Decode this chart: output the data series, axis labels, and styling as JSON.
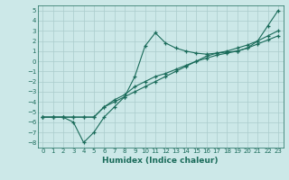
{
  "xlabel": "Humidex (Indice chaleur)",
  "bg_color": "#cce8e8",
  "grid_color": "#aacccc",
  "line_color": "#1a6b5a",
  "xlim": [
    -0.5,
    23.5
  ],
  "ylim": [
    -8.5,
    5.5
  ],
  "xticks": [
    0,
    1,
    2,
    3,
    4,
    5,
    6,
    7,
    8,
    9,
    10,
    11,
    12,
    13,
    14,
    15,
    16,
    17,
    18,
    19,
    20,
    21,
    22,
    23
  ],
  "yticks": [
    5,
    4,
    3,
    2,
    1,
    0,
    -1,
    -2,
    -3,
    -4,
    -5,
    -6,
    -7,
    -8
  ],
  "line1_x": [
    0,
    1,
    2,
    3,
    4,
    5,
    6,
    7,
    8,
    9,
    10,
    11,
    12,
    13,
    14,
    15,
    16,
    17,
    18,
    19,
    20,
    21,
    22,
    23
  ],
  "line1_y": [
    -5.5,
    -5.5,
    -5.5,
    -5.5,
    -5.5,
    -5.5,
    -4.5,
    -4.0,
    -3.5,
    -3.0,
    -2.5,
    -2.0,
    -1.5,
    -1.0,
    -0.5,
    0.0,
    0.5,
    0.8,
    1.0,
    1.3,
    1.6,
    2.0,
    2.5,
    3.0
  ],
  "line2_x": [
    0,
    1,
    2,
    3,
    4,
    5,
    6,
    7,
    8,
    9,
    10,
    11,
    12,
    13,
    14,
    15,
    16,
    17,
    18,
    19,
    20,
    21,
    22,
    23
  ],
  "line2_y": [
    -5.5,
    -5.5,
    -5.5,
    -6.0,
    -8.0,
    -7.0,
    -5.5,
    -4.5,
    -3.5,
    -1.5,
    1.5,
    2.8,
    1.8,
    1.3,
    1.0,
    0.8,
    0.7,
    0.8,
    0.9,
    1.0,
    1.3,
    2.0,
    3.5,
    5.0
  ],
  "line3_x": [
    0,
    1,
    2,
    3,
    4,
    5,
    6,
    7,
    8,
    9,
    10,
    11,
    12,
    13,
    14,
    15,
    16,
    17,
    18,
    19,
    20,
    21,
    22,
    23
  ],
  "line3_y": [
    -5.5,
    -5.5,
    -5.5,
    -5.5,
    -5.5,
    -5.5,
    -4.5,
    -3.8,
    -3.3,
    -2.5,
    -2.0,
    -1.5,
    -1.2,
    -0.8,
    -0.4,
    0.0,
    0.3,
    0.6,
    0.8,
    1.0,
    1.3,
    1.7,
    2.1,
    2.5
  ]
}
